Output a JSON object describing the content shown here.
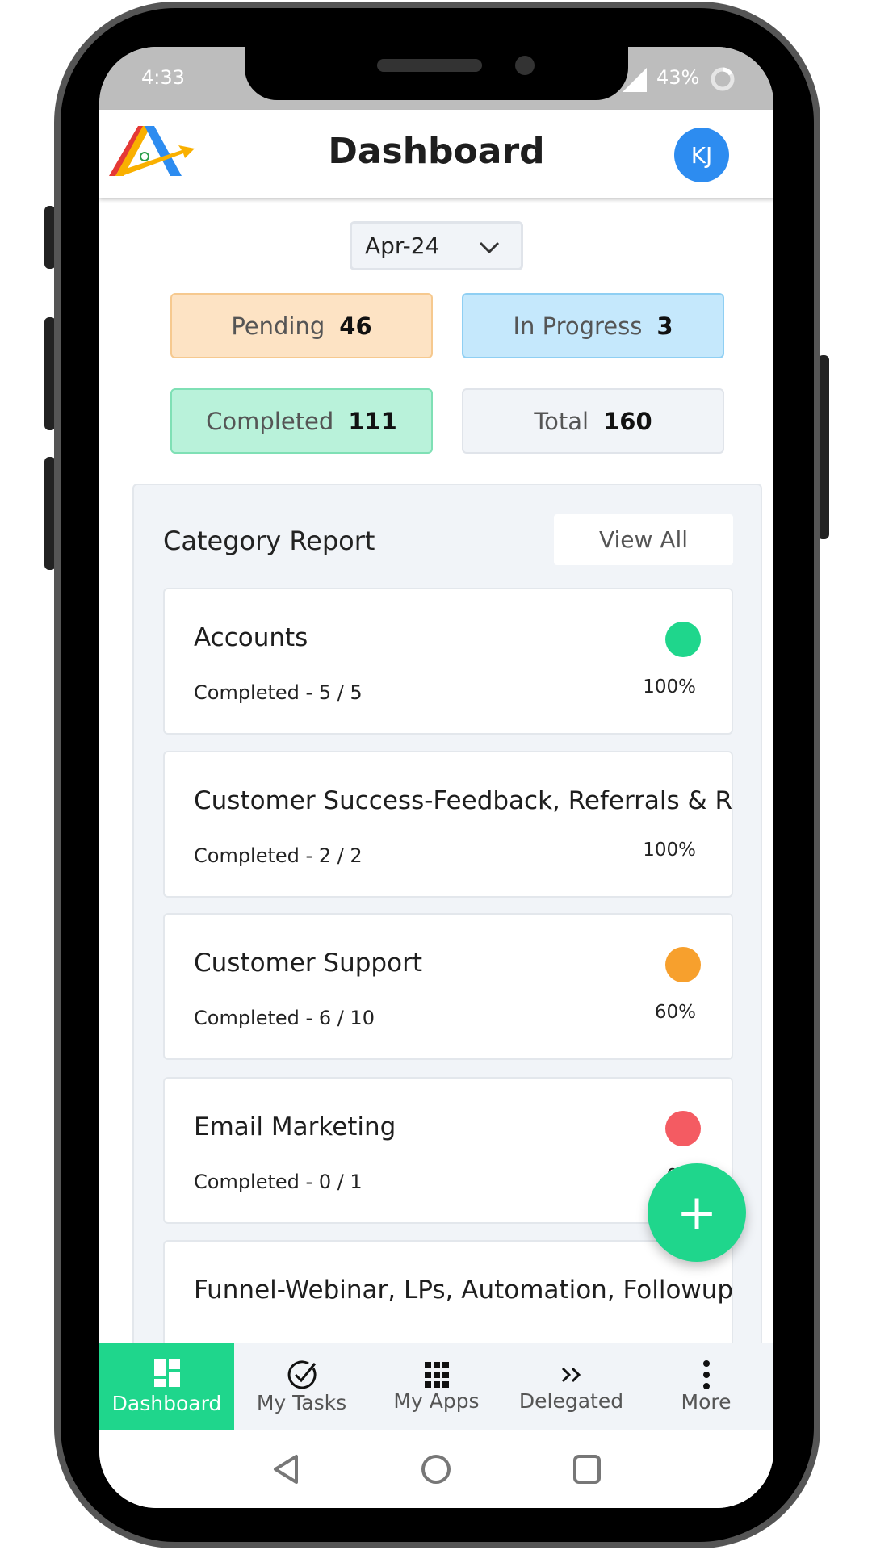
{
  "status_bar": {
    "time": "4:33",
    "battery": "43%"
  },
  "header": {
    "title": "Dashboard",
    "avatar_initials": "KJ"
  },
  "month_select": {
    "value": "Apr-24"
  },
  "stats": [
    {
      "label": "Pending",
      "value": "46",
      "bg": "#fde3c4",
      "border": "#f6c98f"
    },
    {
      "label": "In Progress",
      "value": "3",
      "bg": "#c5e8fc",
      "border": "#8fcff3"
    },
    {
      "label": "Completed",
      "value": "111",
      "bg": "#b9f2da",
      "border": "#7fe0b5"
    },
    {
      "label": "Total",
      "value": "160",
      "bg": "#f1f4f8",
      "border": "#e0e4ea"
    }
  ],
  "category_report": {
    "title": "Category Report",
    "view_all": "View All",
    "items": [
      {
        "name": "Accounts",
        "completed": "Completed - 5 / 5",
        "percent": "100%",
        "status_color": "#1fd68c"
      },
      {
        "name": "Customer Success-Feedback, Referrals & Reviews",
        "completed": "Completed - 2 / 2",
        "percent": "100%",
        "status_color": ""
      },
      {
        "name": "Customer Support",
        "completed": "Completed - 6 / 10",
        "percent": "60%",
        "status_color": "#f7a02d"
      },
      {
        "name": "Email Marketing",
        "completed": "Completed - 0 / 1",
        "percent": "0%",
        "status_color": "#f45b62"
      },
      {
        "name": "Funnel-Webinar, LPs, Automation, Followups",
        "completed": "",
        "percent": "",
        "status_color": ""
      }
    ]
  },
  "fab": {
    "icon": "plus-icon",
    "label": "+"
  },
  "bottom_nav": [
    {
      "label": "Dashboard",
      "icon": "dashboard-icon",
      "active": true
    },
    {
      "label": "My Tasks",
      "icon": "check-circle-icon"
    },
    {
      "label": "My Apps",
      "icon": "grid-icon"
    },
    {
      "label": "Delegated",
      "icon": "double-chevron-icon"
    },
    {
      "label": "More",
      "icon": "more-vertical-icon"
    }
  ],
  "colors": {
    "accent": "#1fd68c",
    "avatar": "#2d8cf0"
  }
}
